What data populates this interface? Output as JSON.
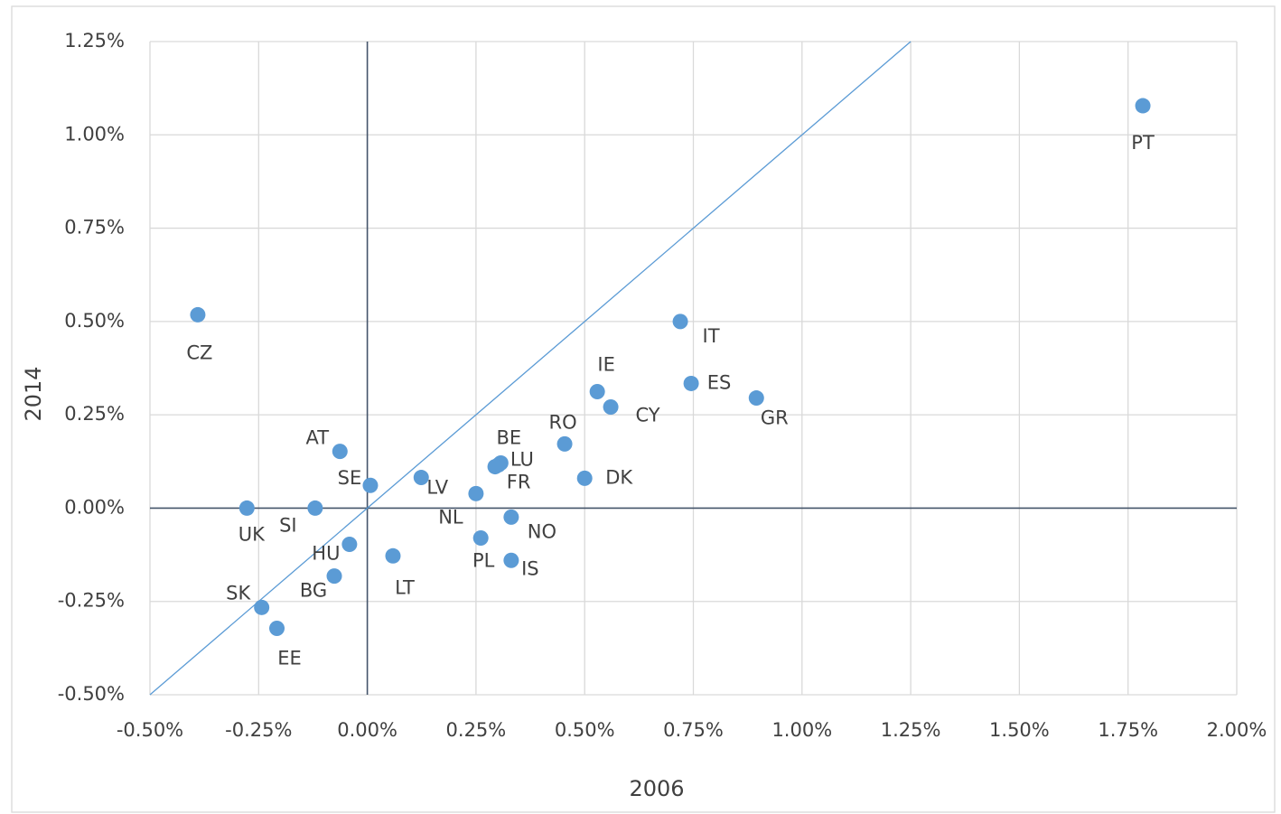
{
  "chart_data": {
    "type": "scatter",
    "xlabel": "2006",
    "ylabel": "2014",
    "xlim": [
      -0.5,
      2.0
    ],
    "ylim": [
      -0.5,
      1.25
    ],
    "xticks": [
      {
        "value": -0.5,
        "label": "-0.50%"
      },
      {
        "value": -0.25,
        "label": "-0.25%"
      },
      {
        "value": 0,
        "label": "0.00%"
      },
      {
        "value": 0.25,
        "label": "0.25%"
      },
      {
        "value": 0.5,
        "label": "0.50%"
      },
      {
        "value": 0.75,
        "label": "0.75%"
      },
      {
        "value": 1.0,
        "label": "1.00%"
      },
      {
        "value": 1.25,
        "label": "1.25%"
      },
      {
        "value": 1.5,
        "label": "1.50%"
      },
      {
        "value": 1.75,
        "label": "1.75%"
      },
      {
        "value": 2.0,
        "label": "2.00%"
      }
    ],
    "yticks": [
      {
        "value": -0.5,
        "label": "-0.50%"
      },
      {
        "value": -0.25,
        "label": "-0.25%"
      },
      {
        "value": 0,
        "label": "0.00%"
      },
      {
        "value": 0.25,
        "label": "0.25%"
      },
      {
        "value": 0.5,
        "label": "0.50%"
      },
      {
        "value": 0.75,
        "label": "0.75%"
      },
      {
        "value": 1.0,
        "label": "1.00%"
      },
      {
        "value": 1.25,
        "label": "1.25%"
      }
    ],
    "grid": true,
    "series": [
      {
        "color": "#5b9bd5",
        "labels": [
          "CZ",
          "PT",
          "IT",
          "ES",
          "GR",
          "IE",
          "CY",
          "RO",
          "DK",
          "BE",
          "LU",
          "FR",
          "NL",
          "NO",
          "PL",
          "IS",
          "LV",
          "SE",
          "AT",
          "UK",
          "SI",
          "HU",
          "LT",
          "BG",
          "SK",
          "EE"
        ],
        "x": [
          -0.39,
          1.784,
          0.72,
          0.745,
          0.895,
          0.529,
          0.56,
          0.454,
          0.5,
          0.307,
          0.302,
          0.294,
          0.25,
          0.331,
          0.261,
          0.331,
          0.124,
          0.007,
          -0.063,
          -0.277,
          -0.12,
          -0.041,
          0.059,
          -0.076,
          -0.243,
          -0.208
        ],
        "values": [
          0.518,
          1.078,
          0.5,
          0.334,
          0.295,
          0.312,
          0.271,
          0.172,
          0.08,
          0.121,
          0.116,
          0.111,
          0.039,
          -0.024,
          -0.08,
          -0.14,
          0.082,
          0.061,
          0.152,
          0,
          0,
          -0.097,
          -0.128,
          -0.182,
          -0.266,
          -0.322
        ]
      }
    ]
  }
}
